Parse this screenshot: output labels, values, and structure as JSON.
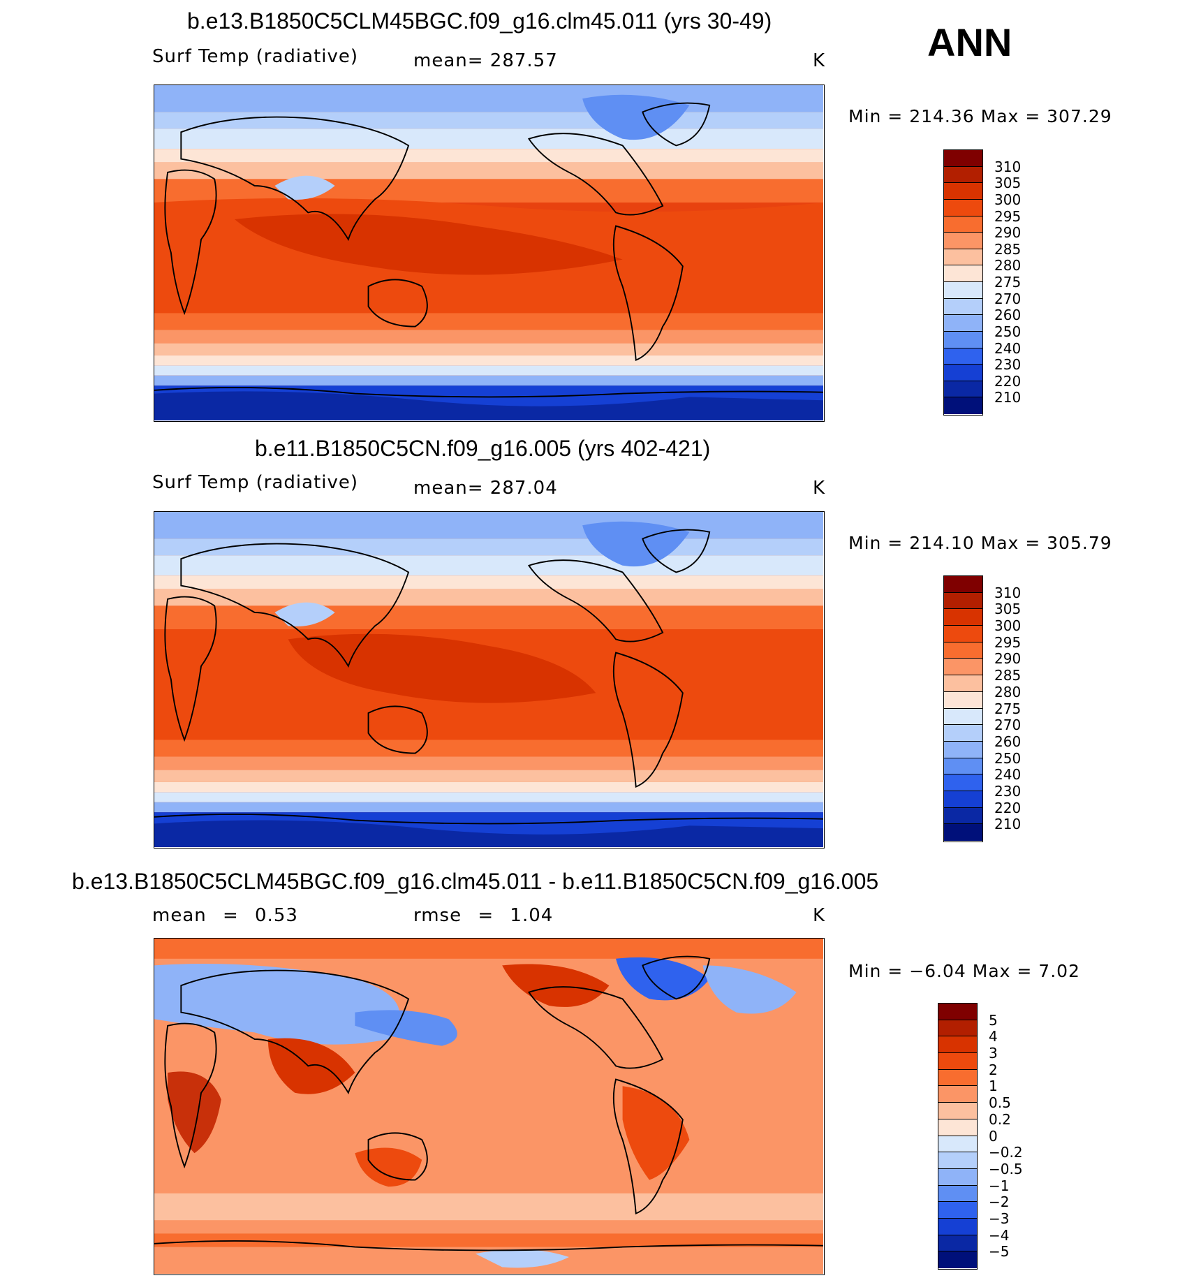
{
  "season": "ANN",
  "panels": [
    {
      "title": "b.e13.B1850C5CLM45BGC.f09_g16.clm45.011 (yrs 30-49)",
      "left_label": "Surf Temp (radiative)",
      "center_label": "mean= 287.57",
      "units": "K",
      "minmax": "Min = 214.36 Max = 307.29",
      "palette": "abs"
    },
    {
      "title": "b.e11.B1850C5CN.f09_g16.005 (yrs 402-421)",
      "left_label": "Surf Temp (radiative)",
      "center_label": "mean= 287.04",
      "units": "K",
      "minmax": "Min = 214.10 Max = 305.79",
      "palette": "abs"
    },
    {
      "title": "b.e13.B1850C5CLM45BGC.f09_g16.clm45.011 - b.e11.B1850C5CN.f09_g16.005",
      "left_label": "mean = 0.53",
      "center_label": "rmse = 1.04",
      "units": "K",
      "minmax": "Min = −6.04 Max = 7.02",
      "palette": "diff"
    }
  ],
  "colorbars": {
    "abs": {
      "labels": [
        "310",
        "305",
        "300",
        "295",
        "290",
        "285",
        "280",
        "275",
        "270",
        "260",
        "250",
        "240",
        "230",
        "220",
        "210"
      ],
      "colors": [
        "#7f0000",
        "#b21f00",
        "#d83300",
        "#ed4a0e",
        "#f86d2f",
        "#fb9566",
        "#fcc09f",
        "#fde5d6",
        "#d8e8fb",
        "#b4cffa",
        "#8fb3f8",
        "#5f8ff3",
        "#2f62ee",
        "#1540d4",
        "#0a28a4",
        "#00107a"
      ]
    },
    "diff": {
      "labels": [
        "5",
        "4",
        "3",
        "2",
        "1",
        "0.5",
        "0.2",
        "0",
        "−0.2",
        "−0.5",
        "−1",
        "−2",
        "−3",
        "−4",
        "−5"
      ],
      "colors": [
        "#7f0000",
        "#b21f00",
        "#d83300",
        "#ed4a0e",
        "#f86d2f",
        "#fb9566",
        "#fcc09f",
        "#fde5d6",
        "#d8e8fb",
        "#b4cffa",
        "#8fb3f8",
        "#5f8ff3",
        "#2f62ee",
        "#1540d4",
        "#0a28a4",
        "#00107a"
      ]
    }
  },
  "map_colors": {
    "deep_blue": "#0a2fc4",
    "blue": "#4f84ee",
    "light_blue": "#a9c6f7",
    "pale": "#fde9dc",
    "peach": "#fcb48e",
    "orange": "#f8703a",
    "red": "#e8420f",
    "dark_red": "#c8300a"
  }
}
